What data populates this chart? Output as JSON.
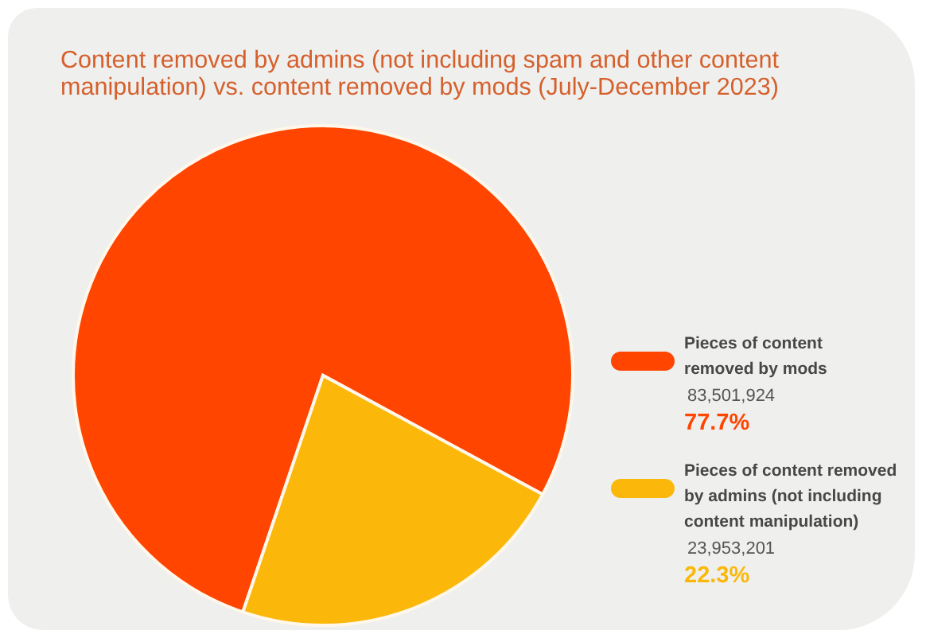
{
  "chart_data": {
    "type": "pie",
    "title": "Content removed by admins (not including spam and other content manipulation) vs. content removed by mods (July-December 2023)",
    "categories": [
      "Pieces of content removed by mods",
      "Pieces of content removed by admins (not including content manipulation)"
    ],
    "values": [
      77.7,
      22.3
    ],
    "colors": [
      "#ff4500",
      "#fbb80a"
    ],
    "value_labels": [
      "77.7%",
      "22.3%"
    ],
    "annotations": [
      "83,501,924",
      "23,953,201"
    ],
    "legend": "right"
  }
}
